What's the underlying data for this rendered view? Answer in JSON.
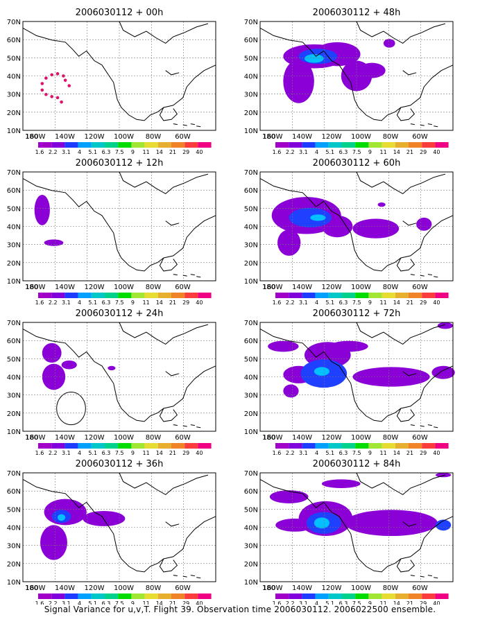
{
  "figure": {
    "caption": "Signal Variance for u,v,T. Flight 39. Observation time 2006030112. 2006022500 ensemble."
  },
  "axes": {
    "lat_labels": [
      "70N",
      "60N",
      "50N",
      "40N",
      "30N",
      "20N",
      "10N"
    ],
    "lon_labels": [
      "180",
      "160W",
      "140W",
      "120W",
      "100W",
      "80W",
      "60W"
    ]
  },
  "colorbar": {
    "labels": [
      "1.6",
      "2.2",
      "3.1",
      "4",
      "5.1",
      "6.3",
      "7.5",
      "9",
      "11",
      "14",
      "21",
      "29",
      "40"
    ],
    "colors": [
      "#a000c8",
      "#8200dc",
      "#1e3cff",
      "#00a0ff",
      "#00c8c8",
      "#00d28c",
      "#00dc00",
      "#a0e632",
      "#e6dc32",
      "#e6af2d",
      "#f08228",
      "#fa3c3c",
      "#f00082"
    ]
  },
  "panels": [
    {
      "id": "p00",
      "title": "2006030112 + 00h"
    },
    {
      "id": "p48",
      "title": "2006030112 + 48h"
    },
    {
      "id": "p12",
      "title": "2006030112 + 12h"
    },
    {
      "id": "p60",
      "title": "2006030112 + 60h"
    },
    {
      "id": "p24",
      "title": "2006030112 + 24h"
    },
    {
      "id": "p72",
      "title": "2006030112 + 72h"
    },
    {
      "id": "p36",
      "title": "2006030112 + 36h"
    },
    {
      "id": "p84",
      "title": "2006030112 + 84h"
    }
  ]
}
